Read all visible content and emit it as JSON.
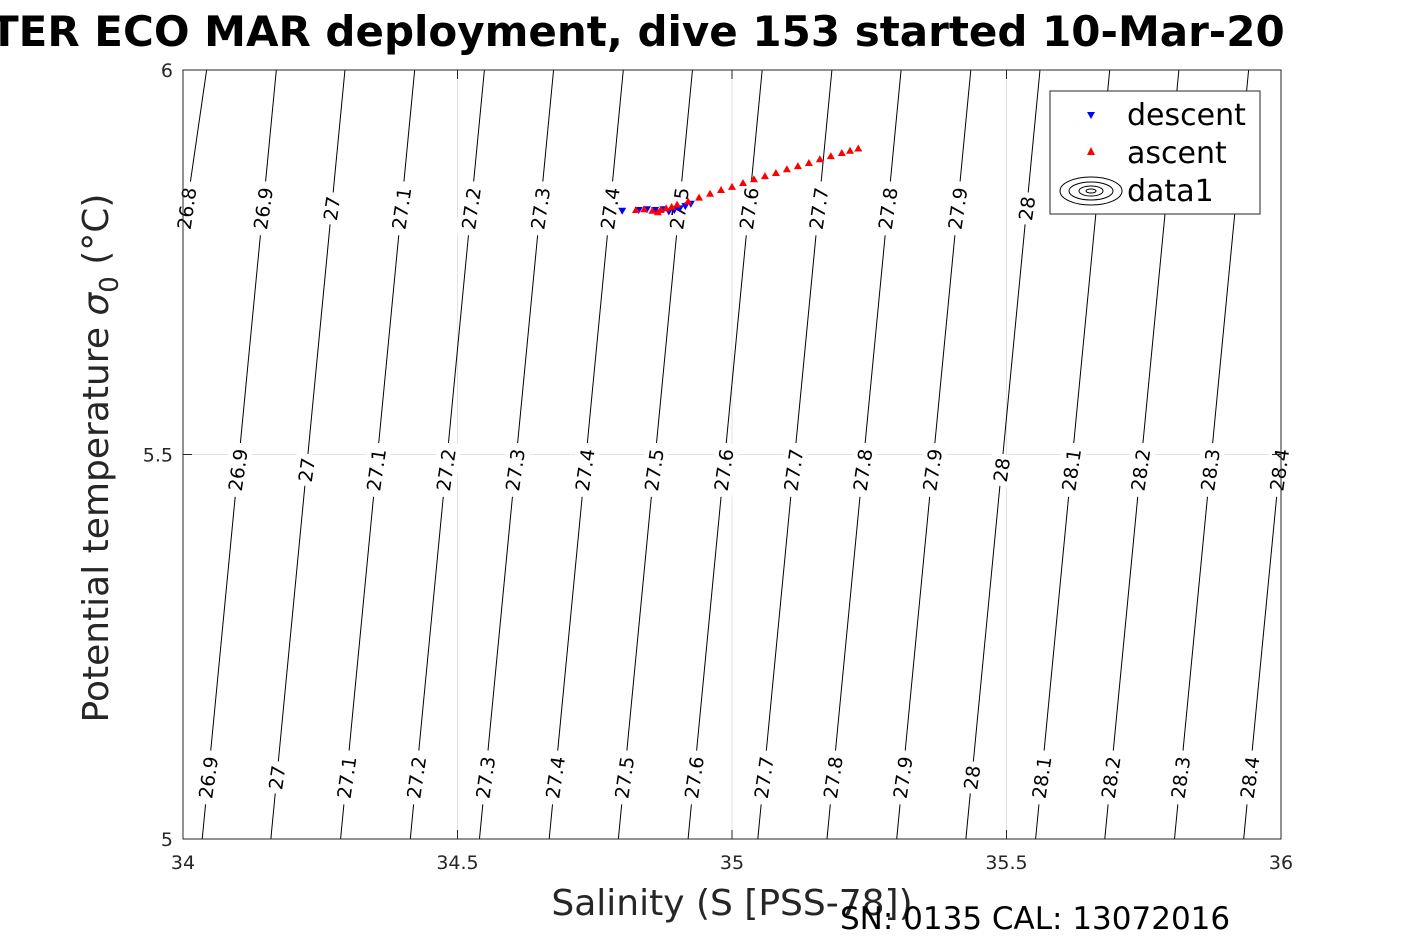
{
  "chart_data": {
    "type": "scatter",
    "title": "TER ECO MAR deployment, dive 153 started 10-Mar-20",
    "xlabel": "Salinity (S [PSS-78])",
    "ylabel": "Potential temperature",
    "ylabel_symbol": "σ",
    "ylabel_subscript": "0",
    "ylabel_unit": "(°C)",
    "xlim": [
      34,
      36
    ],
    "ylim": [
      5,
      6
    ],
    "x_ticks": [
      "34",
      "34.5",
      "35",
      "35.5",
      "36"
    ],
    "y_ticks": [
      "5",
      "5.5",
      "6"
    ],
    "grid": true,
    "legend_position": "top-right",
    "series": [
      {
        "name": "descent",
        "marker": "triangle-down",
        "color": "#0000ff",
        "points": [
          [
            34.8,
            5.817
          ],
          [
            34.83,
            5.818
          ],
          [
            34.845,
            5.819
          ],
          [
            34.86,
            5.818
          ],
          [
            34.875,
            5.819
          ],
          [
            34.885,
            5.816
          ],
          [
            34.895,
            5.818
          ],
          [
            34.905,
            5.82
          ],
          [
            34.915,
            5.823
          ],
          [
            34.925,
            5.826
          ]
        ]
      },
      {
        "name": "ascent",
        "marker": "triangle-up",
        "color": "#ff0000",
        "points": [
          [
            34.825,
            5.818
          ],
          [
            34.84,
            5.819
          ],
          [
            34.855,
            5.817
          ],
          [
            34.865,
            5.815
          ],
          [
            34.87,
            5.818
          ],
          [
            34.88,
            5.82
          ],
          [
            34.89,
            5.822
          ],
          [
            34.9,
            5.825
          ],
          [
            34.92,
            5.829
          ],
          [
            34.94,
            5.834
          ],
          [
            34.96,
            5.839
          ],
          [
            34.98,
            5.844
          ],
          [
            35.0,
            5.848
          ],
          [
            35.02,
            5.853
          ],
          [
            35.04,
            5.858
          ],
          [
            35.06,
            5.862
          ],
          [
            35.08,
            5.866
          ],
          [
            35.1,
            5.871
          ],
          [
            35.12,
            5.875
          ],
          [
            35.14,
            5.879
          ],
          [
            35.16,
            5.884
          ],
          [
            35.18,
            5.888
          ],
          [
            35.2,
            5.892
          ],
          [
            35.215,
            5.895
          ],
          [
            35.23,
            5.898
          ]
        ]
      },
      {
        "name": "data1",
        "marker": "contour",
        "color": "#000000"
      }
    ],
    "isopycnals": [
      {
        "level": "26.8",
        "x_at_5": 33.84,
        "x_at_6": 34.043
      },
      {
        "level": "26.9",
        "x_at_5": 34.035,
        "x_at_6": 34.17
      },
      {
        "level": "27",
        "x_at_5": 34.16,
        "x_at_6": 34.295
      },
      {
        "level": "27.1",
        "x_at_5": 34.287,
        "x_at_6": 34.422
      },
      {
        "level": "27.2",
        "x_at_5": 34.414,
        "x_at_6": 34.549
      },
      {
        "level": "27.3",
        "x_at_5": 34.54,
        "x_at_6": 34.675
      },
      {
        "level": "27.4",
        "x_at_5": 34.667,
        "x_at_6": 34.802
      },
      {
        "level": "27.5",
        "x_at_5": 34.793,
        "x_at_6": 34.928
      },
      {
        "level": "27.6",
        "x_at_5": 34.92,
        "x_at_6": 35.055
      },
      {
        "level": "27.7",
        "x_at_5": 35.047,
        "x_at_6": 35.182
      },
      {
        "level": "27.8",
        "x_at_5": 35.173,
        "x_at_6": 35.308
      },
      {
        "level": "27.9",
        "x_at_5": 35.3,
        "x_at_6": 35.435
      },
      {
        "level": "28",
        "x_at_5": 35.426,
        "x_at_6": 35.561
      },
      {
        "level": "28.1",
        "x_at_5": 35.553,
        "x_at_6": 35.688
      },
      {
        "level": "28.2",
        "x_at_5": 35.679,
        "x_at_6": 35.814
      },
      {
        "level": "28.3",
        "x_at_5": 35.806,
        "x_at_6": 35.941
      },
      {
        "level": "28.4",
        "x_at_5": 35.932,
        "x_at_6": 36.067
      }
    ],
    "isopycnal_label_rows": [
      {
        "temp": 5.82,
        "levels": [
          "26.8",
          "26.9",
          "27",
          "27.1",
          "27.2",
          "27.3",
          "27.4",
          "27.5",
          "27.6",
          "27.7",
          "27.8",
          "27.9",
          "28"
        ]
      },
      {
        "temp": 5.48,
        "levels": [
          "26.9",
          "27",
          "27.1",
          "27.2",
          "27.3",
          "27.4",
          "27.5",
          "27.6",
          "27.7",
          "27.8",
          "27.9",
          "28",
          "28.1",
          "28.2",
          "28.3",
          "28.4"
        ]
      },
      {
        "temp": 5.08,
        "levels": [
          "26.9",
          "27",
          "27.1",
          "27.2",
          "27.3",
          "27.4",
          "27.5",
          "27.6",
          "27.7",
          "27.8",
          "27.9",
          "28",
          "28.1",
          "28.2",
          "28.3",
          "28.4"
        ]
      }
    ]
  },
  "footer": "SN: 0135  CAL: 13072016"
}
